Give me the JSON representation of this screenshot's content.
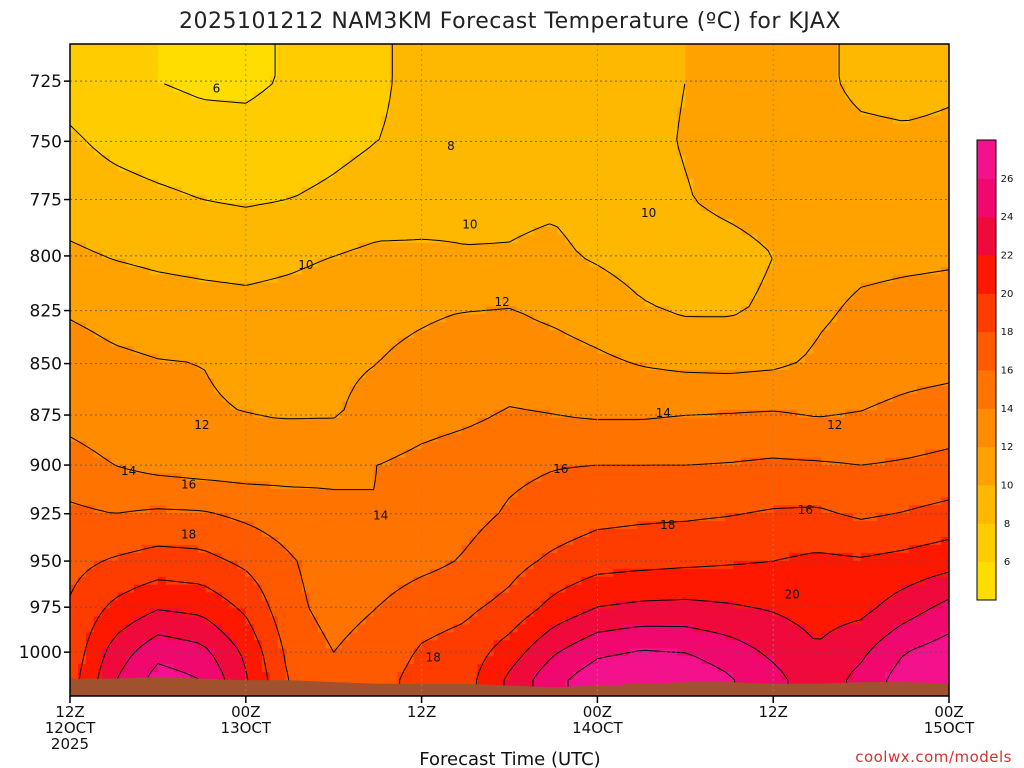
{
  "title": "2025101212 NAM3KM Forecast Temperature (ºC) for KJAX",
  "credit": "coolwx.com/models",
  "chart_data": {
    "type": "heatmap",
    "title": "2025101212 NAM3KM Forecast Temperature (ºC) for KJAX",
    "xlabel": "Forecast Time (UTC)",
    "ylabel": "",
    "y_scale": "log",
    "y_inverted": true,
    "ylim": [
      1025,
      710
    ],
    "xlim": [
      0,
      60
    ],
    "y_ticks": [
      725,
      750,
      775,
      800,
      825,
      850,
      875,
      900,
      925,
      950,
      975,
      1000
    ],
    "x_ticks": [
      {
        "hour": 0,
        "labels": [
          "12Z",
          "12OCT",
          "2025"
        ]
      },
      {
        "hour": 12,
        "labels": [
          "00Z",
          "13OCT"
        ]
      },
      {
        "hour": 24,
        "labels": [
          "12Z"
        ]
      },
      {
        "hour": 36,
        "labels": [
          "00Z",
          "14OCT"
        ]
      },
      {
        "hour": 48,
        "labels": [
          "12Z"
        ]
      },
      {
        "hour": 60,
        "labels": [
          "00Z",
          "15OCT"
        ]
      }
    ],
    "grid": true,
    "colorbar": {
      "levels": [
        4,
        6,
        8,
        10,
        12,
        14,
        16,
        18,
        20,
        22,
        24,
        26,
        28
      ],
      "tick_labels": [
        "6",
        "8",
        "10",
        "12",
        "14",
        "16",
        "18",
        "20",
        "22",
        "24",
        "26"
      ],
      "colors": [
        "#ffdd00",
        "#ffcc00",
        "#ffb800",
        "#ffa200",
        "#ff8c00",
        "#ff7400",
        "#ff5a00",
        "#ff3c00",
        "#ff1800",
        "#f00a3c",
        "#f0086e",
        "#f4128c"
      ]
    },
    "surface_color": "#a0522d",
    "x": [
      0,
      3,
      6,
      9,
      12,
      15,
      18,
      21,
      24,
      27,
      30,
      33,
      36,
      39,
      42,
      45,
      48,
      51,
      54,
      57,
      60
    ],
    "levels_hpa": [
      725,
      750,
      775,
      800,
      825,
      850,
      875,
      900,
      925,
      950,
      975,
      1000,
      1015
    ],
    "surface_hpa": [
      1015,
      1015,
      1014,
      1015,
      1016,
      1016,
      1017,
      1018,
      1018,
      1018,
      1019,
      1020,
      1019,
      1018,
      1017,
      1017,
      1018,
      1018,
      1017,
      1017,
      1018
    ],
    "temperature_c": [
      [
        7.2,
        6.5,
        6.0,
        5.7,
        5.6,
        6.2,
        6.8,
        7.8,
        8.4,
        8.8,
        9.0,
        9.1,
        9.3,
        9.6,
        10.0,
        10.6,
        11.2,
        10.4,
        9.6,
        9.4,
        9.7
      ],
      [
        8.3,
        7.5,
        7.0,
        6.7,
        6.7,
        7.0,
        7.5,
        8.0,
        8.3,
        8.7,
        8.8,
        9.0,
        9.2,
        9.6,
        10.1,
        10.5,
        10.9,
        10.6,
        10.4,
        10.3,
        10.4
      ],
      [
        9.2,
        8.8,
        8.4,
        8.0,
        7.8,
        8.0,
        8.4,
        8.9,
        9.3,
        9.6,
        9.7,
        9.8,
        9.4,
        9.4,
        9.9,
        10.4,
        10.7,
        10.8,
        10.9,
        11.0,
        11.1
      ],
      [
        10.3,
        9.9,
        9.6,
        9.4,
        9.3,
        9.6,
        10.0,
        10.4,
        10.3,
        10.1,
        10.1,
        10.3,
        9.8,
        9.3,
        9.2,
        9.4,
        10.0,
        11.3,
        11.6,
        11.7,
        11.8
      ],
      [
        11.8,
        11.3,
        11.0,
        10.8,
        10.6,
        10.8,
        11.2,
        11.6,
        11.8,
        12.0,
        12.1,
        11.6,
        11.0,
        10.2,
        9.8,
        9.8,
        10.3,
        11.7,
        12.3,
        12.5,
        12.6
      ],
      [
        13.0,
        12.4,
        12.1,
        12.0,
        11.8,
        11.7,
        11.8,
        12.0,
        12.4,
        12.8,
        13.0,
        12.9,
        12.4,
        11.9,
        11.6,
        11.5,
        11.7,
        12.3,
        12.8,
        13.2,
        13.4
      ],
      [
        13.4,
        12.8,
        12.3,
        12.1,
        12.0,
        11.9,
        11.9,
        12.4,
        13.2,
        13.6,
        14.2,
        14.0,
        13.8,
        13.8,
        14.0,
        14.1,
        14.2,
        13.9,
        14.1,
        14.6,
        15.0
      ],
      [
        14.8,
        14.0,
        13.4,
        13.1,
        13.0,
        13.2,
        13.6,
        14.0,
        14.6,
        15.1,
        15.6,
        15.9,
        16.0,
        16.0,
        16.0,
        16.1,
        16.3,
        16.2,
        16.0,
        16.2,
        16.5
      ],
      [
        16.4,
        16.0,
        16.3,
        16.2,
        15.6,
        15.0,
        14.4,
        14.0,
        14.6,
        15.4,
        16.2,
        16.8,
        17.4,
        17.6,
        17.7,
        17.9,
        18.2,
        18.3,
        17.7,
        18.1,
        18.6
      ],
      [
        17.4,
        18.2,
        18.8,
        18.6,
        17.6,
        16.2,
        15.0,
        14.8,
        15.4,
        16.2,
        17.3,
        18.4,
        19.2,
        19.4,
        19.6,
        19.8,
        20.0,
        20.4,
        20.2,
        20.6,
        21.2
      ],
      [
        18.2,
        20.4,
        21.8,
        21.4,
        19.6,
        16.6,
        15.2,
        16.0,
        17.2,
        17.6,
        18.6,
        20.6,
        22.0,
        22.4,
        22.5,
        22.2,
        21.8,
        21.2,
        21.4,
        23.0,
        24.6
      ],
      [
        18.6,
        22.8,
        25.4,
        24.6,
        21.6,
        17.4,
        16.0,
        17.0,
        18.2,
        18.8,
        21.0,
        23.8,
        25.6,
        26.2,
        26.0,
        25.0,
        23.6,
        22.2,
        23.6,
        26.0,
        27.0
      ],
      [
        19.0,
        23.8,
        26.8,
        26.0,
        22.2,
        17.8,
        16.4,
        17.4,
        18.6,
        19.2,
        22.4,
        25.4,
        27.2,
        27.6,
        27.4,
        26.2,
        24.6,
        22.8,
        24.6,
        27.0,
        27.6
      ]
    ],
    "contour_levels": [
      6,
      8,
      10,
      12,
      14,
      16,
      18,
      20,
      22,
      24,
      26
    ],
    "contour_labels": [
      {
        "text": "6",
        "hour": 10.0,
        "p": 728
      },
      {
        "text": "8",
        "hour": 26.0,
        "p": 752
      },
      {
        "text": "10",
        "hour": 27.3,
        "p": 786
      },
      {
        "text": "10",
        "hour": 16.1,
        "p": 804
      },
      {
        "text": "10",
        "hour": 39.5,
        "p": 781
      },
      {
        "text": "12",
        "hour": 29.5,
        "p": 821
      },
      {
        "text": "12",
        "hour": 9.0,
        "p": 880
      },
      {
        "text": "12",
        "hour": 52.2,
        "p": 880
      },
      {
        "text": "14",
        "hour": 4.0,
        "p": 903
      },
      {
        "text": "14",
        "hour": 40.5,
        "p": 874
      },
      {
        "text": "14",
        "hour": 21.2,
        "p": 926
      },
      {
        "text": "16",
        "hour": 8.1,
        "p": 910
      },
      {
        "text": "16",
        "hour": 33.5,
        "p": 902
      },
      {
        "text": "16",
        "hour": 50.2,
        "p": 923
      },
      {
        "text": "18",
        "hour": 8.1,
        "p": 936
      },
      {
        "text": "18",
        "hour": 40.8,
        "p": 931
      },
      {
        "text": "18",
        "hour": 24.8,
        "p": 1003
      },
      {
        "text": "20",
        "hour": 49.3,
        "p": 968
      }
    ]
  }
}
